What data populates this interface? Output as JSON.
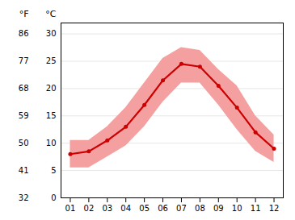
{
  "chart_data": {
    "type": "line",
    "x": [
      1,
      2,
      3,
      4,
      5,
      6,
      7,
      8,
      9,
      10,
      11,
      12
    ],
    "series": [
      {
        "type": "line",
        "color": "#cc0000",
        "marker": "circle",
        "values": [
          8.0,
          8.5,
          10.5,
          13.0,
          17.0,
          21.5,
          24.5,
          24.0,
          20.5,
          16.5,
          12.0,
          9.0
        ]
      },
      {
        "type": "area",
        "color": "#f4a0a0",
        "lower": [
          5.5,
          5.5,
          7.5,
          9.5,
          13.0,
          17.5,
          21.0,
          21.0,
          17.0,
          12.5,
          8.5,
          6.5
        ],
        "upper": [
          10.5,
          10.5,
          13.0,
          16.5,
          21.0,
          25.5,
          27.5,
          27.0,
          23.5,
          20.5,
          15.0,
          11.5
        ]
      }
    ],
    "xlim": [
      0.5,
      12.5
    ],
    "xticks": [
      {
        "value": 1,
        "label": "01"
      },
      {
        "value": 2,
        "label": "02"
      },
      {
        "value": 3,
        "label": "03"
      },
      {
        "value": 4,
        "label": "04"
      },
      {
        "value": 5,
        "label": "05"
      },
      {
        "value": 6,
        "label": "06"
      },
      {
        "value": 7,
        "label": "07"
      },
      {
        "value": 8,
        "label": "08"
      },
      {
        "value": 9,
        "label": "09"
      },
      {
        "value": 10,
        "label": "10"
      },
      {
        "value": 11,
        "label": "11"
      },
      {
        "value": 12,
        "label": "12"
      }
    ],
    "ylabel": "°C",
    "ylim": [
      0,
      32
    ],
    "yticks": [
      0,
      5,
      10,
      15,
      20,
      25,
      30
    ],
    "y2label": "°F",
    "y2lim": [
      32,
      89.6
    ],
    "y2ticks": [
      32,
      41,
      50,
      59,
      68,
      77,
      86
    ],
    "grid": true
  }
}
